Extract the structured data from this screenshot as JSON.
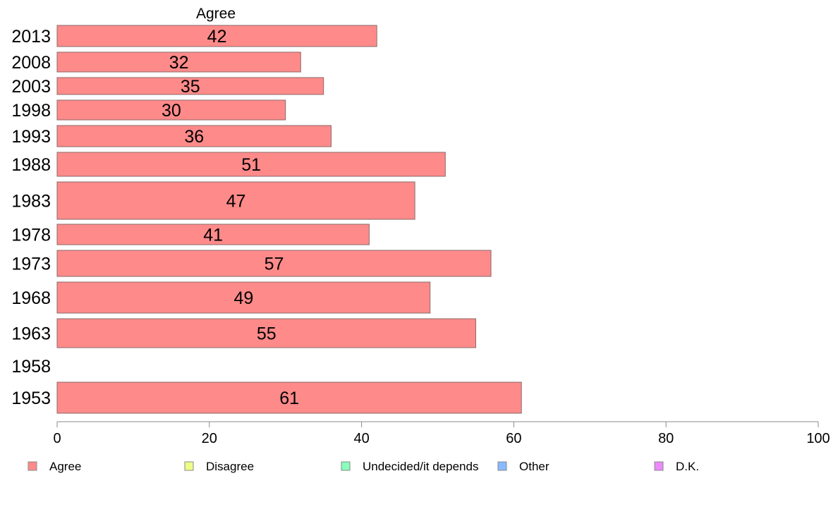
{
  "chart_data": {
    "type": "bar",
    "orientation": "horizontal",
    "stacked": true,
    "series_header": "Agree",
    "categories": [
      "2013",
      "2008",
      "2003",
      "1998",
      "1993",
      "1988",
      "1983",
      "1978",
      "1973",
      "1968",
      "1963",
      "1958",
      "1953"
    ],
    "series": [
      {
        "name": "Agree",
        "color": "#ff8a8a",
        "values": [
          42,
          32,
          35,
          30,
          36,
          51,
          47,
          41,
          57,
          49,
          55,
          null,
          61
        ]
      }
    ],
    "legend": [
      {
        "label": "Agree",
        "color": "#ff8a8a"
      },
      {
        "label": "Disagree",
        "color": "#eeff88"
      },
      {
        "label": "Undecided/it depends",
        "color": "#88ffbb"
      },
      {
        "label": "Other",
        "color": "#88bbff"
      },
      {
        "label": "D.K.",
        "color": "#ee88ff"
      }
    ],
    "legend_position": "bottom",
    "xlim": [
      0,
      100
    ],
    "xticks": [
      0,
      20,
      40,
      60,
      80,
      100
    ],
    "grid": false
  }
}
